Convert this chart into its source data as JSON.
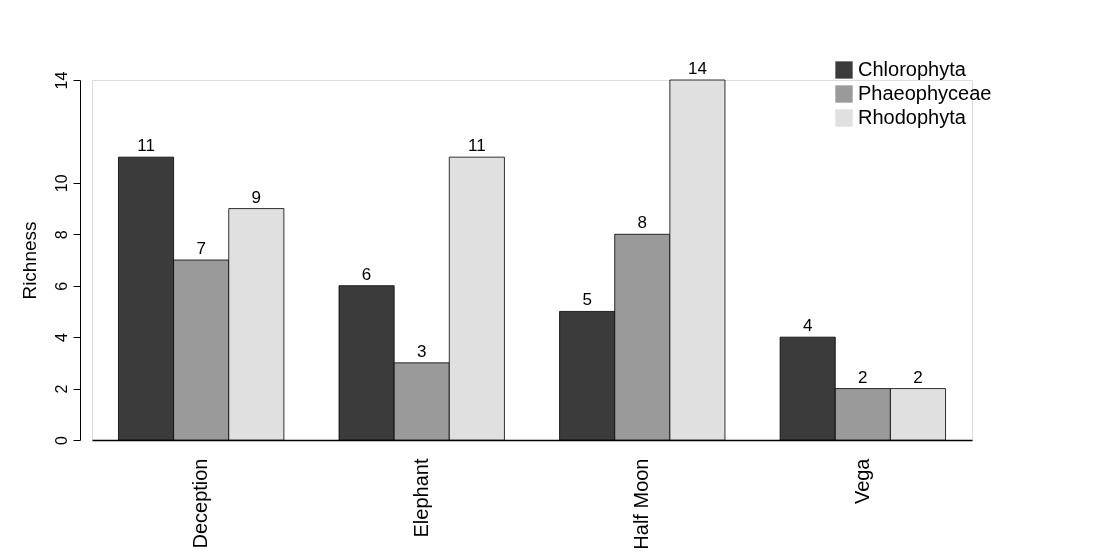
{
  "chart_data": {
    "type": "bar",
    "ylabel": "Richness",
    "categories": [
      "Deception",
      "Elephant",
      "Half Moon",
      "Vega"
    ],
    "series": [
      {
        "name": "Chlorophyta",
        "color": "#3b3b3b",
        "values": [
          11,
          6,
          5,
          4
        ]
      },
      {
        "name": "Phaeophyceae",
        "color": "#9a9a9a",
        "values": [
          7,
          3,
          8,
          2
        ]
      },
      {
        "name": "Rhodophyta",
        "color": "#e0e0e0",
        "values": [
          9,
          11,
          14,
          2
        ]
      }
    ],
    "ylim": [
      0,
      14
    ],
    "yticks": [
      0,
      2,
      4,
      6,
      8,
      10,
      14
    ],
    "data_labels": true,
    "legend": "top right",
    "grid": false
  }
}
